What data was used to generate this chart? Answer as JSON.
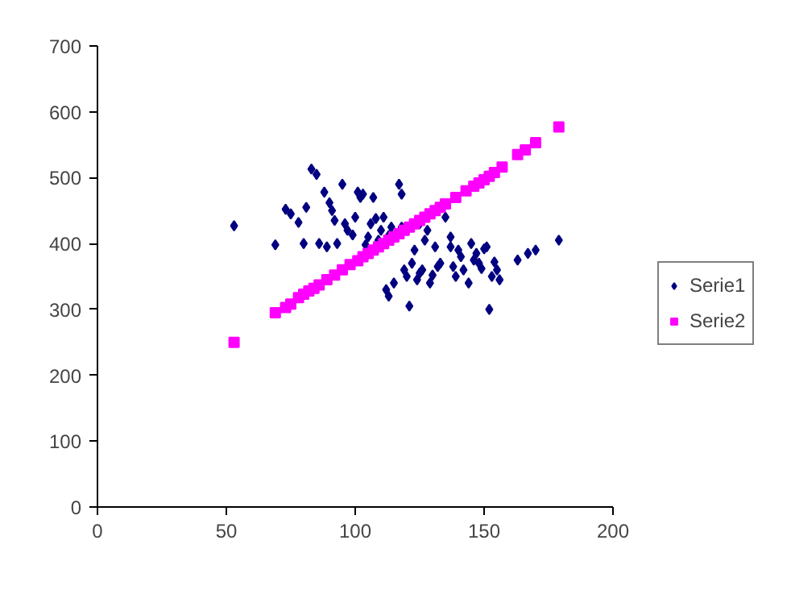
{
  "chart_data": {
    "type": "scatter",
    "xlim": [
      0,
      200
    ],
    "xticks": [
      0,
      50,
      100,
      150,
      200
    ],
    "ylim": [
      0,
      700
    ],
    "yticks": [
      0,
      100,
      200,
      300,
      400,
      500,
      600,
      700
    ],
    "grid": false,
    "legend": "right",
    "series": [
      {
        "name": "Serie1",
        "color": "#000080",
        "marker": "diamond",
        "x": [
          53,
          69,
          73,
          75,
          78,
          80,
          81,
          83,
          85,
          86,
          88,
          89,
          90,
          91,
          93,
          95,
          96,
          97,
          99,
          101,
          102,
          103,
          104,
          105,
          106,
          107,
          108,
          109,
          110,
          111,
          112,
          113,
          114,
          115,
          117,
          118,
          119,
          120,
          121,
          122,
          123,
          124,
          125,
          126,
          127,
          128,
          129,
          130,
          131,
          132,
          133,
          135,
          137,
          138,
          139,
          140,
          141,
          142,
          144,
          145,
          146,
          147,
          148,
          149,
          150,
          151,
          152,
          153,
          154,
          155,
          156,
          163,
          167,
          170,
          179,
          118,
          125,
          100,
          92,
          113,
          137
        ],
        "values": [
          427,
          398,
          452,
          445,
          432,
          400,
          455,
          513,
          505,
          400,
          478,
          395,
          462,
          450,
          400,
          490,
          430,
          420,
          413,
          478,
          470,
          475,
          398,
          410,
          430,
          470,
          438,
          405,
          420,
          440,
          330,
          320,
          425,
          340,
          490,
          475,
          360,
          350,
          305,
          370,
          390,
          345,
          355,
          360,
          405,
          420,
          340,
          352,
          395,
          365,
          370,
          440,
          410,
          365,
          350,
          390,
          380,
          360,
          340,
          400,
          375,
          385,
          370,
          362,
          392,
          395,
          300,
          350,
          372,
          360,
          345,
          375,
          385,
          390,
          405,
          425,
          430,
          440,
          435,
          412,
          395
        ]
      },
      {
        "name": "Serie2",
        "color": "#ff00ff",
        "marker": "square",
        "x": [
          53,
          69,
          73,
          75,
          78,
          80,
          82,
          84,
          86,
          89,
          92,
          95,
          98,
          101,
          103,
          105,
          107,
          109,
          111,
          113,
          115,
          117,
          119,
          121,
          123,
          125,
          127,
          129,
          131,
          133,
          135,
          139,
          143,
          146,
          148,
          150,
          152,
          154,
          157,
          163,
          166,
          170,
          179
        ],
        "values": [
          250,
          295,
          303,
          308,
          318,
          323,
          328,
          332,
          337,
          345,
          352,
          360,
          368,
          374,
          380,
          385,
          390,
          395,
          400,
          405,
          410,
          415,
          420,
          425,
          430,
          435,
          440,
          445,
          450,
          455,
          460,
          470,
          480,
          487,
          492,
          497,
          502,
          508,
          516,
          535,
          542,
          553,
          577
        ]
      }
    ]
  }
}
